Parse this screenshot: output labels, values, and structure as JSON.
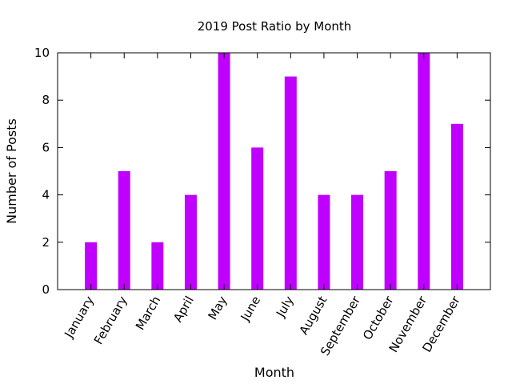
{
  "chart_data": {
    "type": "bar",
    "title": "2019 Post Ratio by Month",
    "xlabel": "Month",
    "ylabel": "Number of Posts",
    "categories": [
      "January",
      "February",
      "March",
      "April",
      "May",
      "June",
      "July",
      "August",
      "September",
      "October",
      "November",
      "December"
    ],
    "values": [
      2,
      5,
      2,
      4,
      10,
      6,
      9,
      4,
      4,
      5,
      10,
      7
    ],
    "ylim": [
      0,
      10
    ],
    "yticks": [
      0,
      2,
      4,
      6,
      8,
      10
    ],
    "bar_color": "#bf00ff",
    "grid": false,
    "legend": "none"
  }
}
